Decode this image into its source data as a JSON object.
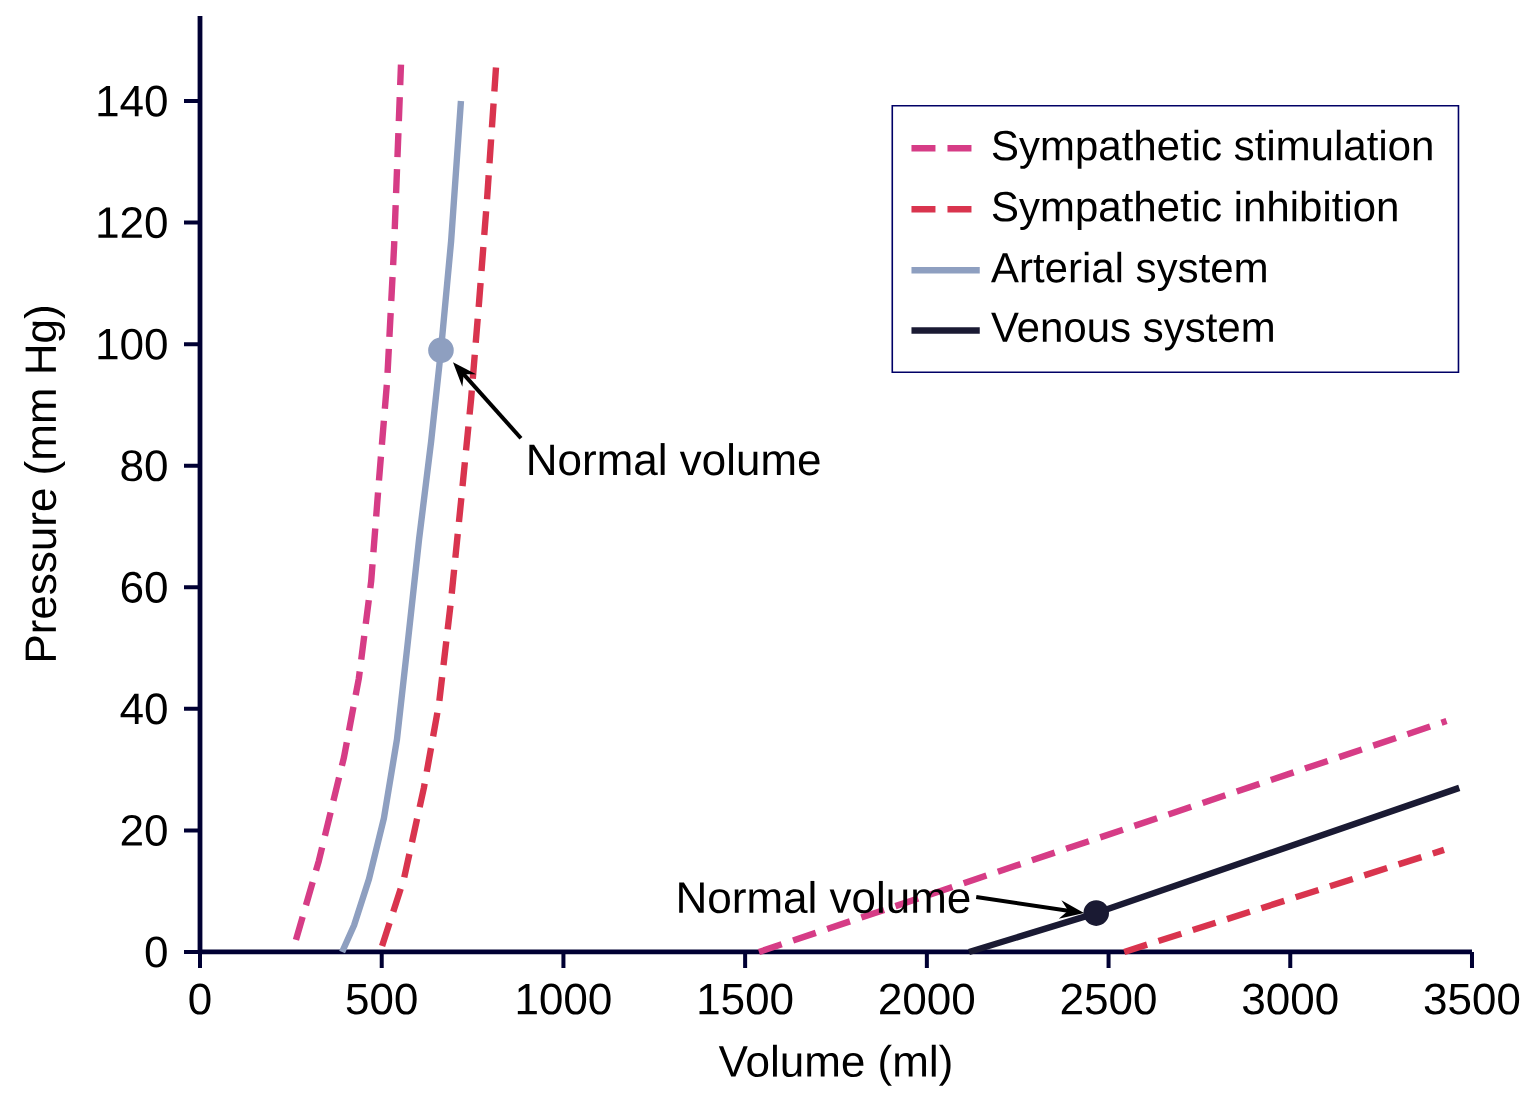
{
  "chart_data": {
    "type": "line",
    "xlabel": "Volume (ml)",
    "ylabel": "Pressure (mm Hg)",
    "xlim": [
      0,
      3500
    ],
    "ylim": [
      0,
      154
    ],
    "xticks": [
      0,
      500,
      1000,
      1500,
      2000,
      2500,
      3000,
      3500
    ],
    "yticks": [
      0,
      20,
      40,
      60,
      80,
      100,
      120,
      140
    ],
    "legend": "top right",
    "series": [
      {
        "name": "Sympathetic stimulation",
        "color": "#d63c86",
        "line_style": "dashed",
        "x": [
          264,
          327,
          396,
          437,
          471,
          493,
          515,
          534,
          553
        ],
        "values": [
          2,
          15,
          32,
          45,
          61,
          78,
          94,
          116,
          146
        ]
      },
      {
        "name": "Sympathetic inhibition",
        "color": "#d9344e",
        "line_style": "dashed",
        "x": [
          501,
          561,
          616,
          658,
          691,
          718,
          746,
          768,
          790,
          815
        ],
        "values": [
          1,
          12,
          27,
          41,
          58,
          74,
          91,
          107,
          124,
          146
        ]
      },
      {
        "name": "Arterial system",
        "color": "#8e9fc0",
        "line_style": "solid",
        "x": [
          391,
          424,
          465,
          506,
          542,
          570,
          603,
          636,
          663,
          691,
          718
        ],
        "values": [
          0,
          4.4,
          12,
          22,
          35,
          50,
          68,
          84,
          99,
          117,
          140
        ]
      },
      {
        "name": "Venous system",
        "color": "#1a1a33",
        "line_style": "solid",
        "x": [
          2116,
          2466,
          3465
        ],
        "values": [
          0,
          6.4,
          27
        ]
      },
      {
        "color": "#d63c86",
        "line_style": "dashed",
        "x": [
          1538,
          3430
        ],
        "values": [
          0,
          38
        ]
      },
      {
        "color": "#d9344e",
        "line_style": "dashed",
        "x": [
          2543,
          3423
        ],
        "values": [
          0,
          16.8
        ]
      },
      {
        "type": "scatter",
        "color": "#8e9fc0",
        "x": [
          663
        ],
        "values": [
          99
        ]
      },
      {
        "type": "scatter",
        "color": "#1a1a33",
        "x": [
          2466
        ],
        "values": [
          6.4
        ]
      }
    ],
    "annotations": [
      {
        "text": "Normal volume",
        "x": 663,
        "y": 99
      },
      {
        "text": "Normal volume",
        "x": 2466,
        "y": 6.4
      }
    ]
  }
}
